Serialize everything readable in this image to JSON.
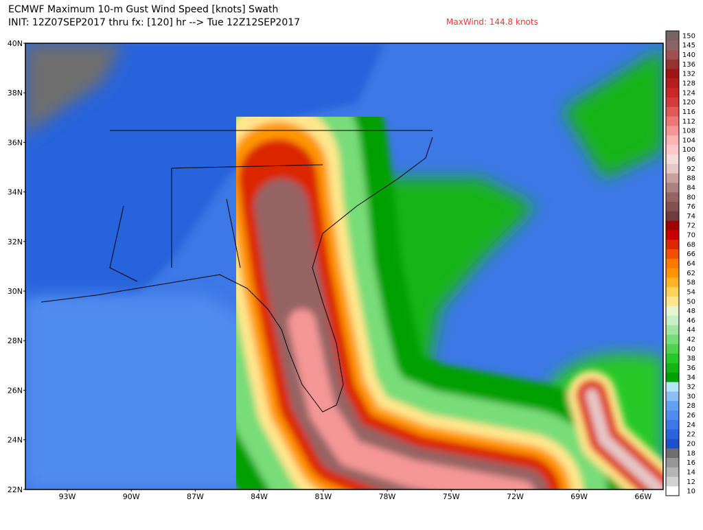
{
  "header": {
    "title": "ECMWF Maximum 10-m Gust Wind Speed [knots] Swath",
    "subtitle": "INIT: 12Z07SEP2017 thru fx: [120] hr --> Tue 12Z12SEP2017",
    "annotation": "MaxWind: 144.8 knots"
  },
  "map": {
    "lat_labels": [
      "40N",
      "38N",
      "36N",
      "34N",
      "32N",
      "30N",
      "28N",
      "26N",
      "24N",
      "22N"
    ],
    "lon_labels": [
      "93W",
      "90W",
      "87W",
      "84W",
      "81W",
      "78W",
      "75W",
      "72W",
      "69W",
      "66W"
    ]
  },
  "colorbar": {
    "levels": [
      10,
      12,
      14,
      16,
      18,
      20,
      22,
      24,
      26,
      28,
      30,
      32,
      34,
      36,
      38,
      40,
      42,
      44,
      46,
      48,
      50,
      54,
      58,
      62,
      64,
      66,
      68,
      70,
      72,
      74,
      76,
      80,
      84,
      88,
      92,
      96,
      100,
      104,
      108,
      112,
      116,
      120,
      124,
      128,
      132,
      136,
      140,
      145,
      150
    ],
    "colors": [
      "#ffffff",
      "#d2d2d2",
      "#b4b4b4",
      "#969696",
      "#6e6e6e",
      "#1e50c8",
      "#2864dc",
      "#3c78e6",
      "#508cf0",
      "#64a0f0",
      "#8cbef5",
      "#b4e6fa",
      "#00a000",
      "#14b414",
      "#28c828",
      "#50d250",
      "#78dc78",
      "#a0e6a0",
      "#c8f0c8",
      "#e6f5d2",
      "#ffe68c",
      "#ffd25a",
      "#ffb428",
      "#ff9600",
      "#ff7800",
      "#f05000",
      "#dc2800",
      "#c80000",
      "#a00000",
      "#6e3c3c",
      "#825050",
      "#966464",
      "#aa8282",
      "#c8a0a0",
      "#e6c8c8",
      "#f5dcdc",
      "#ffc8c8",
      "#ffb4b4",
      "#f59696",
      "#eb7878",
      "#e15a5a",
      "#d23c3c",
      "#c82828",
      "#b41e1e",
      "#a01414",
      "#963232",
      "#a05050",
      "#8c6464",
      "#786464"
    ]
  }
}
